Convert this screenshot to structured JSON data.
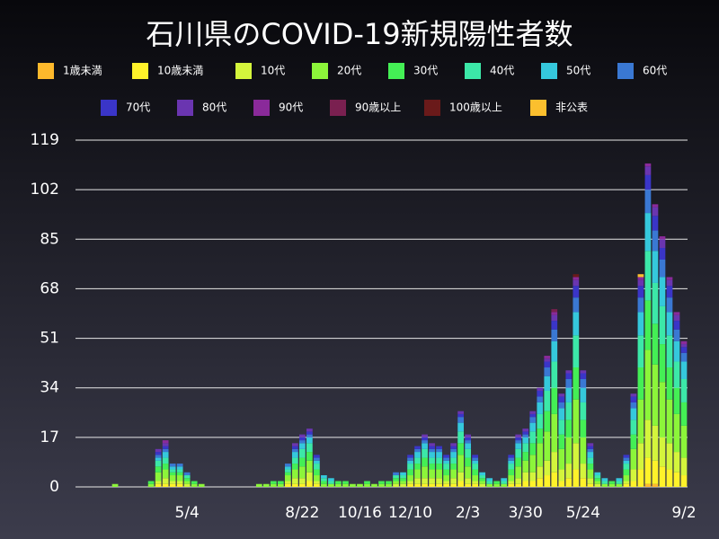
{
  "chart_data": {
    "type": "stacked-bar",
    "title": "石川県のCOVID-19新規陽性者数",
    "categories": [
      null,
      null,
      null,
      null,
      null,
      null,
      null,
      null,
      null,
      null,
      null,
      null,
      null,
      null,
      null,
      "5/4",
      null,
      null,
      null,
      null,
      null,
      null,
      null,
      null,
      null,
      null,
      null,
      null,
      null,
      null,
      null,
      "8/22",
      null,
      null,
      null,
      null,
      null,
      null,
      null,
      "10/16",
      null,
      null,
      null,
      null,
      null,
      null,
      "12/10",
      null,
      null,
      null,
      null,
      null,
      null,
      null,
      "2/3",
      null,
      null,
      null,
      null,
      null,
      null,
      null,
      "3/30",
      null,
      null,
      null,
      null,
      null,
      null,
      null,
      "5/24",
      null,
      null,
      null,
      null,
      null,
      null,
      null,
      null,
      null,
      null,
      null,
      null,
      null,
      "9/2"
    ],
    "ylim": [
      0,
      119
    ],
    "yticks": [
      0,
      17,
      34,
      51,
      68,
      85,
      102,
      119
    ],
    "grid": true,
    "series": [
      {
        "name": "1歳未満",
        "color": "#fdb92c",
        "values": [
          0,
          0,
          0,
          0,
          0,
          0,
          0,
          0,
          0,
          0,
          0,
          0,
          0,
          0,
          0,
          0,
          0,
          0,
          0,
          0,
          0,
          0,
          0,
          0,
          0,
          0,
          0,
          0,
          0,
          0,
          0,
          0,
          0,
          0,
          0,
          0,
          0,
          0,
          0,
          0,
          0,
          0,
          0,
          0,
          0,
          0,
          0,
          0,
          0,
          0,
          0,
          0,
          0,
          0,
          0,
          0,
          0,
          0,
          0,
          0,
          0,
          0,
          0,
          0,
          0,
          0,
          0,
          0,
          0,
          0,
          0,
          0,
          0,
          0,
          0,
          0,
          0,
          0,
          0,
          1,
          1,
          0,
          0,
          0,
          0
        ]
      },
      {
        "name": "10歳未満",
        "color": "#fff22a",
        "values": [
          0,
          0,
          0,
          0,
          0,
          0,
          0,
          0,
          0,
          0,
          0,
          1,
          1,
          1,
          1,
          0,
          0,
          0,
          0,
          0,
          0,
          0,
          0,
          0,
          0,
          0,
          0,
          0,
          0,
          1,
          1,
          1,
          2,
          1,
          0,
          0,
          0,
          0,
          0,
          0,
          0,
          0,
          0,
          0,
          0,
          0,
          1,
          1,
          1,
          1,
          1,
          1,
          1,
          2,
          1,
          1,
          0,
          0,
          0,
          0,
          1,
          1,
          2,
          2,
          3,
          4,
          5,
          2,
          3,
          6,
          3,
          1,
          0,
          0,
          0,
          0,
          1,
          2,
          6,
          9,
          8,
          7,
          6,
          5,
          4
        ]
      },
      {
        "name": "10代",
        "color": "#d4f53c",
        "values": [
          0,
          0,
          0,
          0,
          0,
          0,
          0,
          0,
          0,
          0,
          0,
          1,
          2,
          1,
          1,
          1,
          0,
          0,
          0,
          0,
          0,
          0,
          0,
          0,
          0,
          0,
          0,
          0,
          0,
          1,
          2,
          2,
          3,
          1,
          0,
          0,
          0,
          0,
          0,
          0,
          0,
          0,
          0,
          0,
          1,
          1,
          1,
          2,
          2,
          2,
          2,
          1,
          2,
          3,
          2,
          1,
          1,
          0,
          0,
          0,
          1,
          2,
          3,
          3,
          4,
          5,
          7,
          4,
          5,
          9,
          5,
          2,
          1,
          0,
          0,
          0,
          1,
          4,
          9,
          13,
          12,
          10,
          9,
          7,
          6
        ]
      },
      {
        "name": "20代",
        "color": "#8cf53a",
        "values": [
          0,
          0,
          0,
          0,
          0,
          1,
          0,
          0,
          0,
          0,
          1,
          3,
          3,
          2,
          2,
          1,
          1,
          1,
          0,
          0,
          0,
          0,
          0,
          0,
          0,
          1,
          1,
          1,
          1,
          2,
          3,
          4,
          4,
          2,
          1,
          1,
          1,
          1,
          1,
          1,
          1,
          1,
          1,
          1,
          1,
          1,
          2,
          3,
          4,
          3,
          3,
          2,
          3,
          6,
          4,
          2,
          1,
          1,
          1,
          1,
          2,
          4,
          4,
          6,
          8,
          10,
          13,
          7,
          9,
          15,
          9,
          3,
          1,
          1,
          1,
          1,
          2,
          7,
          15,
          24,
          21,
          19,
          15,
          13,
          11
        ]
      },
      {
        "name": "30代",
        "color": "#44ef55",
        "values": [
          0,
          0,
          0,
          0,
          0,
          0,
          0,
          0,
          0,
          0,
          1,
          2,
          2,
          1,
          1,
          1,
          1,
          0,
          0,
          0,
          0,
          0,
          0,
          0,
          0,
          0,
          0,
          1,
          1,
          1,
          2,
          3,
          3,
          2,
          1,
          0,
          1,
          1,
          0,
          0,
          1,
          0,
          1,
          1,
          1,
          1,
          2,
          2,
          3,
          2,
          2,
          2,
          2,
          4,
          3,
          2,
          1,
          0,
          1,
          0,
          2,
          3,
          3,
          4,
          5,
          7,
          9,
          5,
          6,
          11,
          6,
          2,
          1,
          0,
          1,
          0,
          2,
          5,
          11,
          17,
          14,
          13,
          11,
          9,
          8
        ]
      },
      {
        "name": "40代",
        "color": "#3ce8a8",
        "values": [
          0,
          0,
          0,
          0,
          0,
          0,
          0,
          0,
          0,
          0,
          0,
          2,
          2,
          1,
          1,
          1,
          0,
          0,
          0,
          0,
          0,
          0,
          0,
          0,
          0,
          0,
          0,
          0,
          0,
          1,
          2,
          3,
          3,
          2,
          1,
          1,
          0,
          0,
          0,
          0,
          0,
          0,
          0,
          0,
          1,
          1,
          2,
          2,
          3,
          2,
          2,
          2,
          2,
          4,
          3,
          2,
          1,
          1,
          0,
          1,
          2,
          3,
          3,
          4,
          5,
          7,
          9,
          5,
          6,
          11,
          6,
          2,
          1,
          1,
          0,
          1,
          2,
          5,
          11,
          17,
          14,
          13,
          11,
          9,
          8
        ]
      },
      {
        "name": "50代",
        "color": "#35c8dc",
        "values": [
          0,
          0,
          0,
          0,
          0,
          0,
          0,
          0,
          0,
          0,
          0,
          1,
          2,
          1,
          1,
          0,
          0,
          0,
          0,
          0,
          0,
          0,
          0,
          0,
          0,
          0,
          0,
          0,
          0,
          1,
          2,
          2,
          2,
          1,
          1,
          1,
          0,
          0,
          0,
          0,
          0,
          0,
          0,
          0,
          0,
          1,
          1,
          2,
          2,
          2,
          2,
          1,
          2,
          3,
          2,
          1,
          1,
          1,
          0,
          1,
          1,
          2,
          2,
          3,
          4,
          5,
          7,
          4,
          5,
          8,
          5,
          2,
          1,
          1,
          0,
          1,
          1,
          4,
          8,
          13,
          11,
          10,
          8,
          7,
          6
        ]
      },
      {
        "name": "60代",
        "color": "#3a78d3",
        "values": [
          0,
          0,
          0,
          0,
          0,
          0,
          0,
          0,
          0,
          0,
          0,
          1,
          1,
          1,
          1,
          1,
          0,
          0,
          0,
          0,
          0,
          0,
          0,
          0,
          0,
          0,
          0,
          0,
          0,
          1,
          1,
          1,
          1,
          1,
          0,
          0,
          0,
          0,
          0,
          0,
          0,
          0,
          0,
          0,
          1,
          0,
          1,
          1,
          1,
          1,
          1,
          1,
          1,
          2,
          1,
          1,
          0,
          0,
          0,
          0,
          1,
          1,
          1,
          2,
          2,
          3,
          4,
          2,
          3,
          5,
          3,
          1,
          0,
          0,
          0,
          0,
          1,
          2,
          5,
          8,
          7,
          6,
          5,
          4,
          3
        ]
      },
      {
        "name": "70代",
        "color": "#3a35c8",
        "values": [
          0,
          0,
          0,
          0,
          0,
          0,
          0,
          0,
          0,
          0,
          0,
          1,
          1,
          0,
          0,
          0,
          0,
          0,
          0,
          0,
          0,
          0,
          0,
          0,
          0,
          0,
          0,
          0,
          0,
          0,
          1,
          1,
          1,
          1,
          0,
          0,
          0,
          0,
          0,
          0,
          0,
          0,
          0,
          0,
          0,
          0,
          1,
          1,
          1,
          1,
          1,
          1,
          1,
          1,
          1,
          1,
          0,
          0,
          0,
          0,
          1,
          1,
          1,
          1,
          2,
          2,
          3,
          2,
          2,
          4,
          2,
          1,
          0,
          0,
          0,
          0,
          1,
          2,
          4,
          5,
          5,
          4,
          4,
          3,
          2
        ]
      },
      {
        "name": "80代",
        "color": "#6a35b0",
        "values": [
          0,
          0,
          0,
          0,
          0,
          0,
          0,
          0,
          0,
          0,
          0,
          1,
          1,
          0,
          0,
          0,
          0,
          0,
          0,
          0,
          0,
          0,
          0,
          0,
          0,
          0,
          0,
          0,
          0,
          0,
          1,
          1,
          1,
          0,
          0,
          0,
          0,
          0,
          0,
          0,
          0,
          0,
          0,
          0,
          0,
          0,
          0,
          0,
          1,
          1,
          0,
          0,
          1,
          1,
          1,
          0,
          0,
          0,
          0,
          0,
          0,
          1,
          1,
          1,
          1,
          1,
          2,
          1,
          1,
          2,
          1,
          1,
          0,
          0,
          0,
          0,
          0,
          1,
          2,
          3,
          3,
          3,
          2,
          2,
          1
        ]
      },
      {
        "name": "90代",
        "color": "#8a2a9a",
        "values": [
          0,
          0,
          0,
          0,
          0,
          0,
          0,
          0,
          0,
          0,
          0,
          0,
          1,
          0,
          0,
          0,
          0,
          0,
          0,
          0,
          0,
          0,
          0,
          0,
          0,
          0,
          0,
          0,
          0,
          0,
          0,
          0,
          0,
          0,
          0,
          0,
          0,
          0,
          0,
          0,
          0,
          0,
          0,
          0,
          0,
          0,
          0,
          0,
          0,
          0,
          0,
          0,
          0,
          0,
          0,
          0,
          0,
          0,
          0,
          0,
          0,
          0,
          0,
          0,
          0,
          1,
          1,
          0,
          0,
          1,
          0,
          0,
          0,
          0,
          0,
          0,
          0,
          0,
          1,
          1,
          1,
          1,
          1,
          1,
          1
        ]
      },
      {
        "name": "90歳以上",
        "color": "#7a2050",
        "values": [
          0,
          0,
          0,
          0,
          0,
          0,
          0,
          0,
          0,
          0,
          0,
          0,
          0,
          0,
          0,
          0,
          0,
          0,
          0,
          0,
          0,
          0,
          0,
          0,
          0,
          0,
          0,
          0,
          0,
          0,
          0,
          0,
          0,
          0,
          0,
          0,
          0,
          0,
          0,
          0,
          0,
          0,
          0,
          0,
          0,
          0,
          0,
          0,
          0,
          0,
          0,
          0,
          0,
          0,
          0,
          0,
          0,
          0,
          0,
          0,
          0,
          0,
          0,
          0,
          0,
          0,
          1,
          0,
          0,
          0,
          0,
          0,
          0,
          0,
          0,
          0,
          0,
          0,
          0,
          0,
          0,
          0,
          0,
          0,
          0
        ]
      },
      {
        "name": "100歳以上",
        "color": "#6a1a1a",
        "values": [
          0,
          0,
          0,
          0,
          0,
          0,
          0,
          0,
          0,
          0,
          0,
          0,
          0,
          0,
          0,
          0,
          0,
          0,
          0,
          0,
          0,
          0,
          0,
          0,
          0,
          0,
          0,
          0,
          0,
          0,
          0,
          0,
          0,
          0,
          0,
          0,
          0,
          0,
          0,
          0,
          0,
          0,
          0,
          0,
          0,
          0,
          0,
          0,
          0,
          0,
          0,
          0,
          0,
          0,
          0,
          0,
          0,
          0,
          0,
          0,
          0,
          0,
          0,
          0,
          0,
          0,
          0,
          0,
          0,
          1,
          0,
          0,
          0,
          0,
          0,
          0,
          0,
          0,
          0,
          0,
          0,
          0,
          0,
          0,
          0
        ]
      },
      {
        "name": "非公表",
        "color": "#fbbf2e",
        "values": [
          0,
          0,
          0,
          0,
          0,
          0,
          0,
          0,
          0,
          0,
          0,
          0,
          0,
          0,
          0,
          0,
          0,
          0,
          0,
          0,
          0,
          0,
          0,
          0,
          0,
          0,
          0,
          0,
          0,
          0,
          0,
          0,
          0,
          0,
          0,
          0,
          0,
          0,
          0,
          0,
          0,
          0,
          0,
          0,
          0,
          0,
          0,
          0,
          0,
          0,
          0,
          0,
          0,
          0,
          0,
          0,
          0,
          0,
          0,
          0,
          0,
          0,
          0,
          0,
          0,
          0,
          0,
          0,
          0,
          0,
          0,
          0,
          0,
          0,
          0,
          0,
          0,
          0,
          1,
          0,
          0,
          0,
          0,
          0,
          0
        ]
      }
    ]
  }
}
